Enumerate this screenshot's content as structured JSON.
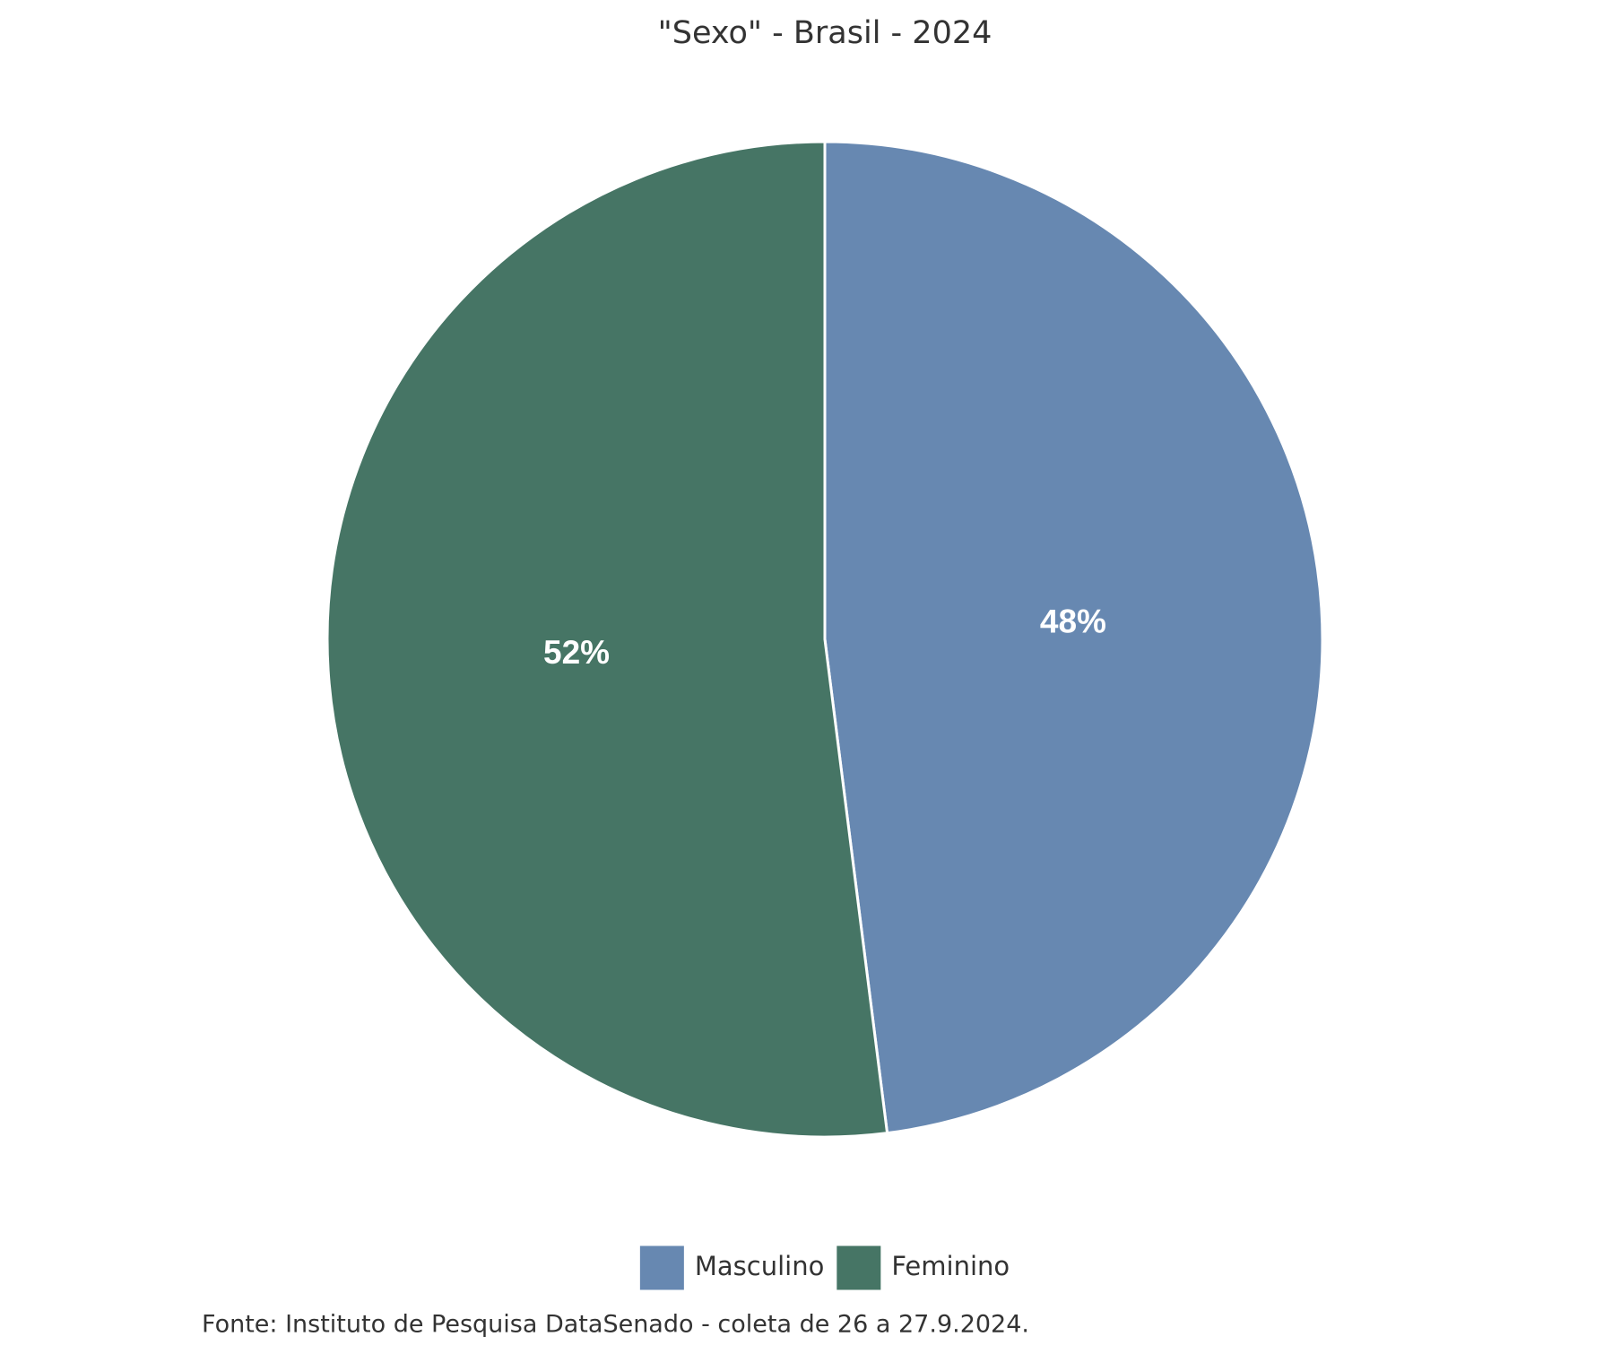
{
  "chart_data": {
    "type": "pie",
    "title": "\"Sexo\" - Brasil - 2024",
    "categories": [
      "Masculino",
      "Feminino"
    ],
    "values": [
      48,
      52
    ],
    "value_labels": [
      "48%",
      "52%"
    ],
    "colors": [
      "#6788b1",
      "#467565"
    ],
    "legend": "bottom",
    "source": "Fonte: Instituto de Pesquisa DataSenado - coleta de 26 a 27.9.2024."
  }
}
